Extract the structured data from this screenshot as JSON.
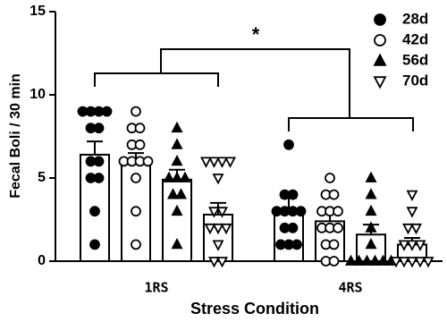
{
  "chart_data": {
    "type": "bar",
    "x_label": "Stress Condition",
    "y_label": "Fecal Boli / 30 min",
    "annotation": "*",
    "categories": [
      "1RS",
      "4RS"
    ],
    "ylim": [
      0,
      15
    ],
    "yticks": [
      0,
      5,
      10,
      15
    ],
    "legend": "top-right",
    "bar_fill": "#ffffff",
    "color": "#000000",
    "series": [
      {
        "name": "28d",
        "marker": "circle-filled",
        "values": [
          6.4,
          3.1
        ],
        "errors": [
          0.8,
          0.7
        ],
        "points": [
          [
            9,
            9,
            9,
            9,
            8,
            8,
            6,
            6,
            5,
            5,
            3,
            1
          ],
          [
            7,
            4,
            4,
            3,
            3,
            3,
            3,
            2,
            2,
            1,
            1,
            1
          ]
        ]
      },
      {
        "name": "42d",
        "marker": "circle-open",
        "values": [
          5.9,
          2.4
        ],
        "errors": [
          0.6,
          0.5
        ],
        "points": [
          [
            9,
            8,
            8,
            7,
            7,
            6,
            6,
            6,
            6,
            5,
            3,
            1
          ],
          [
            5,
            4,
            4,
            3,
            3,
            3,
            2,
            2,
            2,
            1,
            1,
            0,
            0
          ]
        ]
      },
      {
        "name": "56d",
        "marker": "triangle-up-filled",
        "values": [
          4.9,
          1.6
        ],
        "errors": [
          0.6,
          0.6
        ],
        "points": [
          [
            8,
            7,
            6,
            5,
            5,
            5,
            4,
            4,
            3,
            1
          ],
          [
            5,
            4,
            3,
            2,
            1,
            0,
            0,
            0,
            0,
            0,
            0
          ]
        ]
      },
      {
        "name": "70d",
        "marker": "triangle-down-open",
        "values": [
          2.8,
          1.0
        ],
        "errors": [
          0.7,
          0.4
        ],
        "points": [
          [
            6,
            6,
            6,
            6,
            5,
            3,
            3,
            2,
            2,
            2,
            1,
            0,
            0
          ],
          [
            4,
            3,
            2,
            2,
            1,
            1,
            1,
            0,
            0,
            0,
            0,
            0
          ]
        ]
      }
    ]
  }
}
